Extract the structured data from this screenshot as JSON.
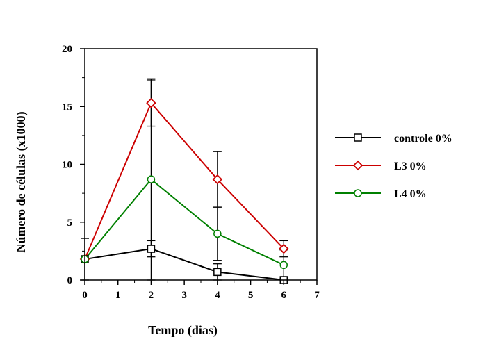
{
  "chart_data": {
    "type": "line",
    "title": "",
    "xlabel": "Tempo (dias)",
    "ylabel": "Número de células (x1000)",
    "xlim": [
      0,
      7
    ],
    "ylim": [
      0,
      20
    ],
    "x_ticks": [
      "0",
      "1",
      "2",
      "3",
      "4",
      "5",
      "6",
      "7"
    ],
    "y_ticks": [
      "0",
      "5",
      "10",
      "15",
      "20"
    ],
    "grid": false,
    "legend_position": "right",
    "series": [
      {
        "name": "controle 0%",
        "color": "#000000",
        "marker": "square",
        "x": [
          0,
          2,
          4,
          6
        ],
        "y": [
          1.8,
          2.7,
          0.7,
          0.0
        ],
        "error": [
          1.8,
          0.7,
          0.7,
          0.1
        ]
      },
      {
        "name": "L3 0%",
        "color": "#cc0000",
        "marker": "diamond",
        "x": [
          0,
          2,
          4,
          6
        ],
        "y": [
          1.8,
          15.3,
          8.7,
          2.7
        ],
        "error": [
          0.1,
          2.0,
          2.4,
          0.7
        ]
      },
      {
        "name": "L4 0%",
        "color": "#008000",
        "marker": "circle",
        "x": [
          0,
          2,
          4,
          6
        ],
        "y": [
          1.8,
          8.7,
          4.0,
          1.3
        ],
        "error": [
          0.1,
          8.7,
          2.3,
          1.3
        ]
      }
    ]
  }
}
